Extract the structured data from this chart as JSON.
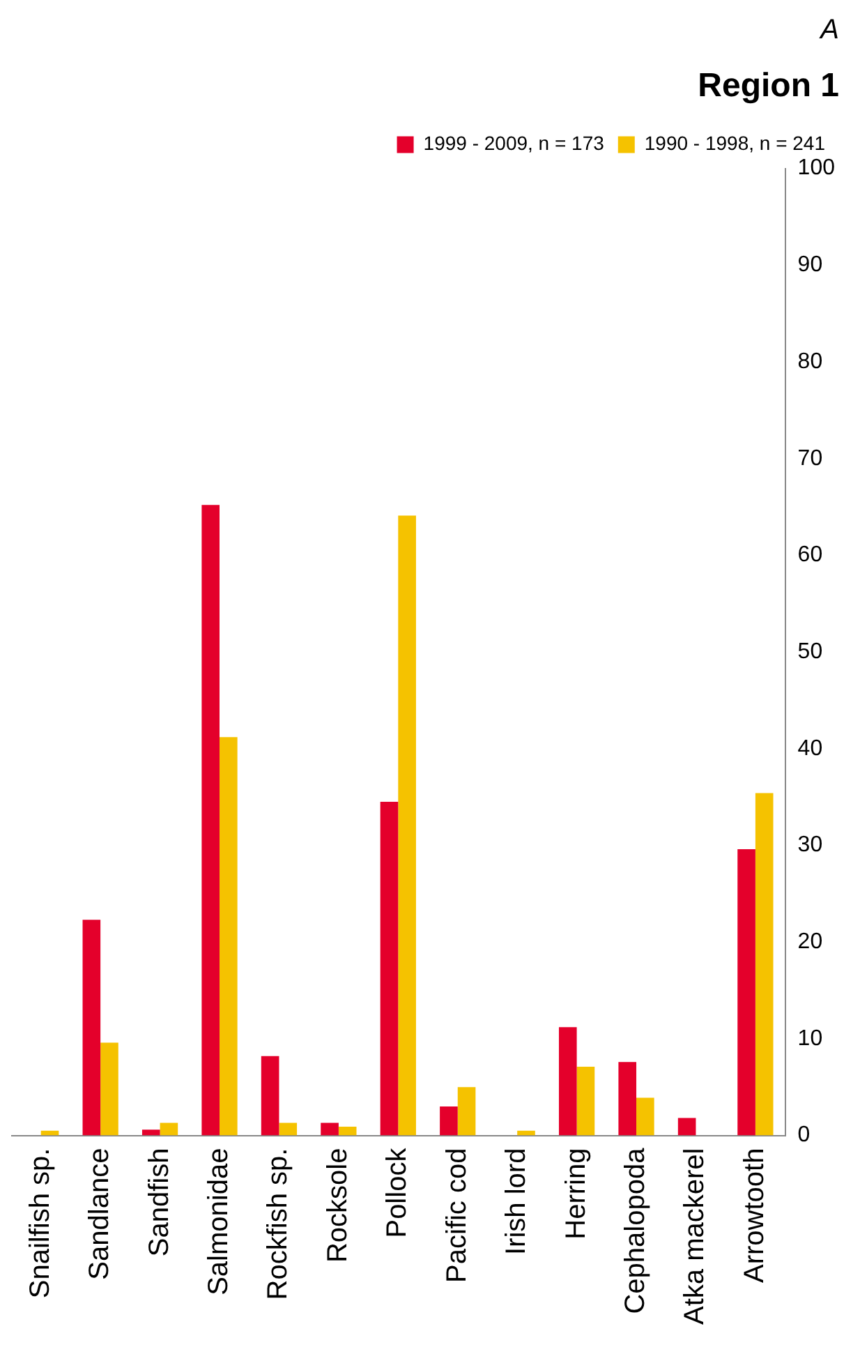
{
  "chart_data": {
    "type": "bar",
    "title": "Region 1",
    "categories": [
      "Snailfish sp.",
      "Sandlance",
      "Sandfish",
      "Salmonidae",
      "Rockfish sp.",
      "Rocksole",
      "Pollock",
      "Pacific cod",
      "Irish lord",
      "Herring",
      "Cephalopoda",
      "Atka mackerel",
      "Arrowtooth"
    ],
    "series": [
      {
        "name": "1999 - 2009, n = 173",
        "color": "#e4002b",
        "values": [
          0,
          22.3,
          0.6,
          65.2,
          8.2,
          1.3,
          34.5,
          3.0,
          0,
          11.2,
          7.6,
          1.8,
          29.6
        ]
      },
      {
        "name": "1990 - 1998, n = 241",
        "color": "#f5c200",
        "values": [
          0.5,
          9.6,
          1.3,
          41.2,
          1.3,
          0.9,
          64.1,
          5.0,
          0.5,
          7.1,
          3.9,
          0,
          35.4
        ]
      }
    ],
    "ylim": [
      0,
      100
    ],
    "yticks": [
      0,
      10,
      20,
      30,
      40,
      50,
      60,
      70,
      80,
      90,
      100
    ],
    "grid": false,
    "legend": "top right",
    "annotations": [
      "A"
    ]
  }
}
